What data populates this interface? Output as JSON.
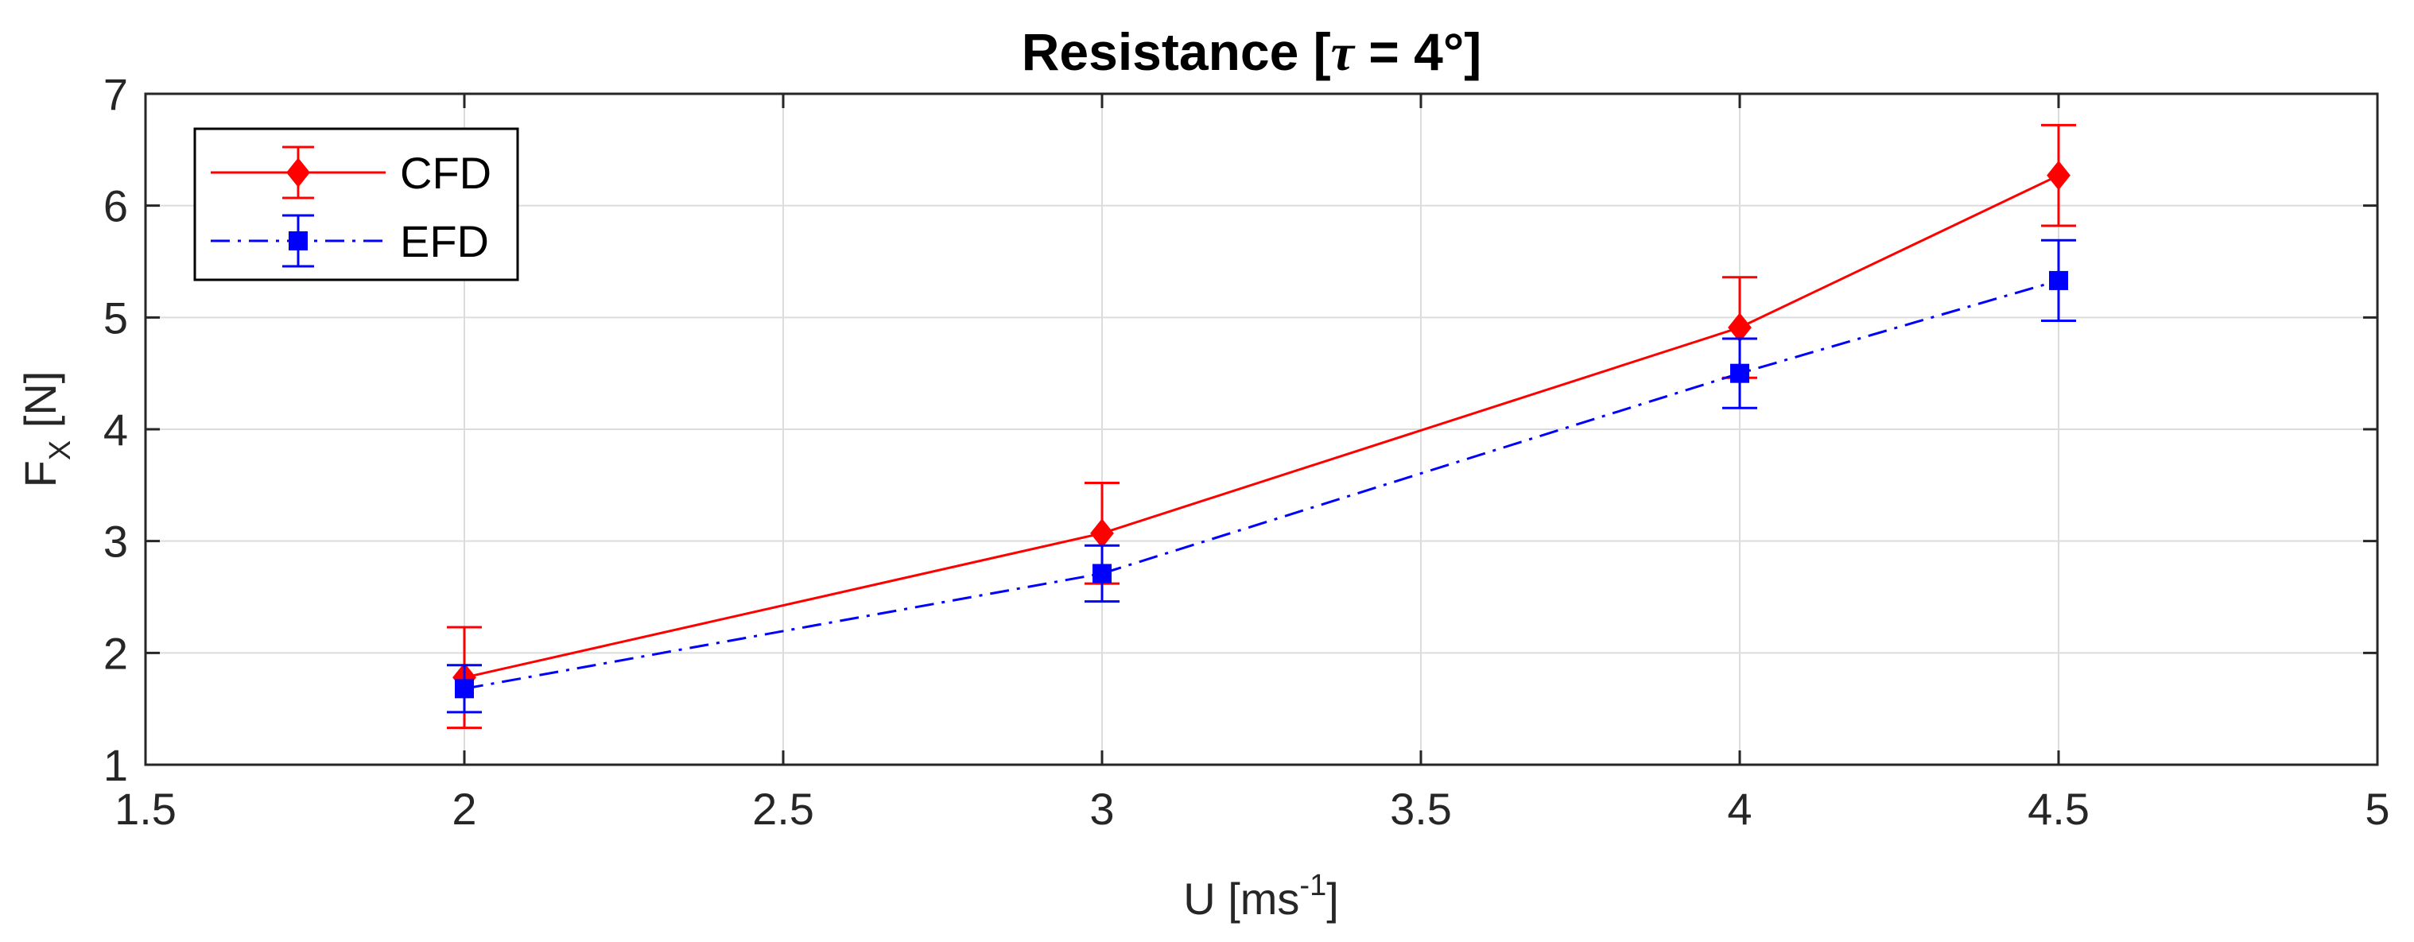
{
  "chart_data": {
    "type": "line",
    "title": {
      "main": "Resistance [",
      "symbol": "τ",
      "rest": " = 4°]"
    },
    "xlabel": {
      "main": "U [ms",
      "sup": "-1",
      "end": "]"
    },
    "ylabel": {
      "main": "F",
      "sub": "X",
      "end": " [N]"
    },
    "xlim": [
      1.5,
      5
    ],
    "ylim": [
      1,
      7
    ],
    "xticks": [
      1.5,
      2,
      2.5,
      3,
      3.5,
      4,
      4.5,
      5
    ],
    "xtick_labels": [
      "1.5",
      "2",
      "2.5",
      "3",
      "3.5",
      "4",
      "4.5",
      "5"
    ],
    "yticks": [
      1,
      2,
      3,
      4,
      5,
      6,
      7
    ],
    "ytick_labels": [
      "1",
      "2",
      "3",
      "4",
      "5",
      "6",
      "7"
    ],
    "grid": true,
    "legend_position": "top-left",
    "series": [
      {
        "name": "CFD",
        "color": "#ff0000",
        "marker": "diamond",
        "linestyle": "solid",
        "x": [
          2,
          3,
          4,
          4.5
        ],
        "y": [
          1.78,
          3.07,
          4.91,
          6.27
        ],
        "err_low": [
          0.45,
          0.45,
          0.45,
          0.45
        ],
        "err_high": [
          0.45,
          0.45,
          0.45,
          0.45
        ]
      },
      {
        "name": "EFD",
        "color": "#0000ff",
        "marker": "square",
        "linestyle": "dashdot",
        "x": [
          2,
          3,
          4,
          4.5
        ],
        "y": [
          1.68,
          2.71,
          4.5,
          5.33
        ],
        "err_low": [
          0.21,
          0.25,
          0.31,
          0.36
        ],
        "err_high": [
          0.21,
          0.25,
          0.31,
          0.36
        ]
      }
    ]
  }
}
